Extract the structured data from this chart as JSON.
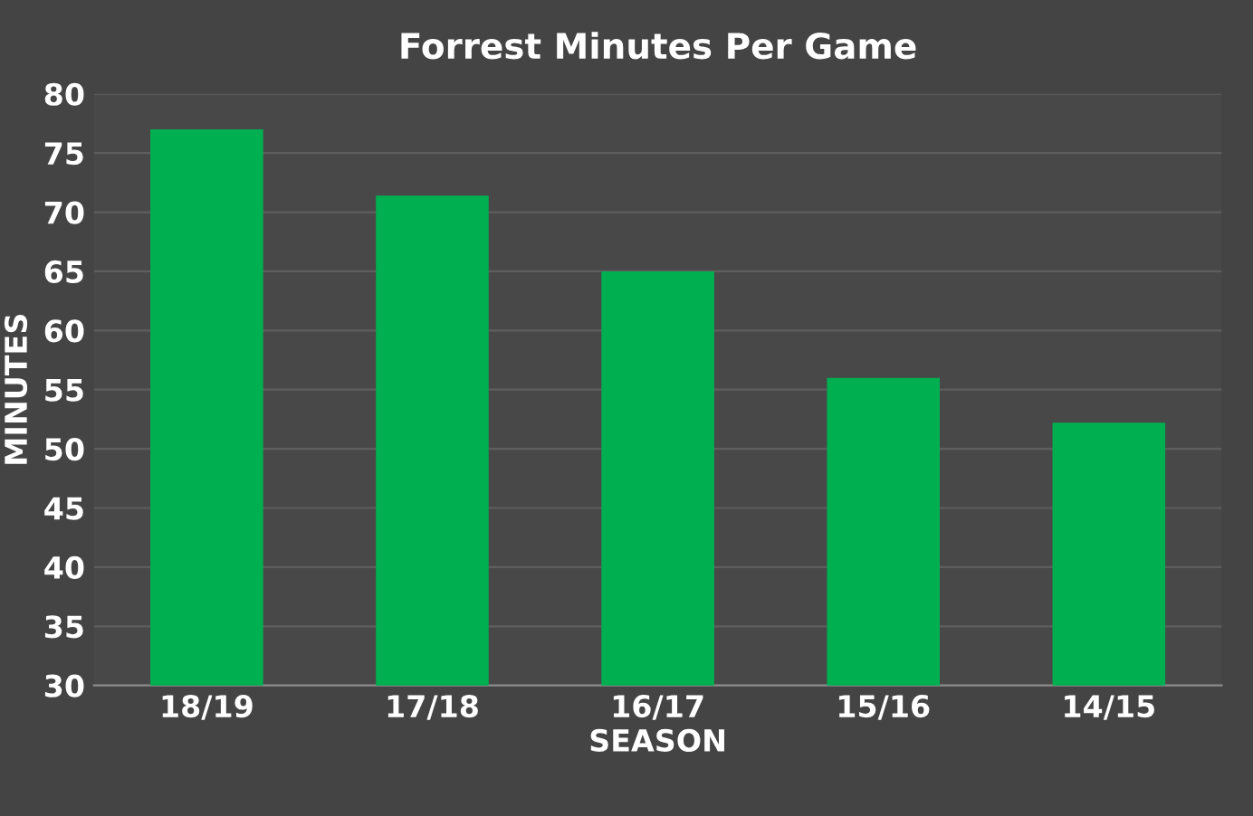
{
  "chart_data": {
    "type": "bar",
    "title": "Forrest Minutes Per Game",
    "xlabel": "SEASON",
    "ylabel": "MINUTES",
    "categories": [
      "18/19",
      "17/18",
      "16/17",
      "15/16",
      "14/15"
    ],
    "values": [
      77,
      71.4,
      65,
      56,
      52.2
    ],
    "color": "#00b050",
    "ylim": [
      30,
      80
    ],
    "yticks": [
      30,
      35,
      40,
      45,
      50,
      55,
      60,
      65,
      70,
      75,
      80
    ],
    "grid": "y"
  }
}
